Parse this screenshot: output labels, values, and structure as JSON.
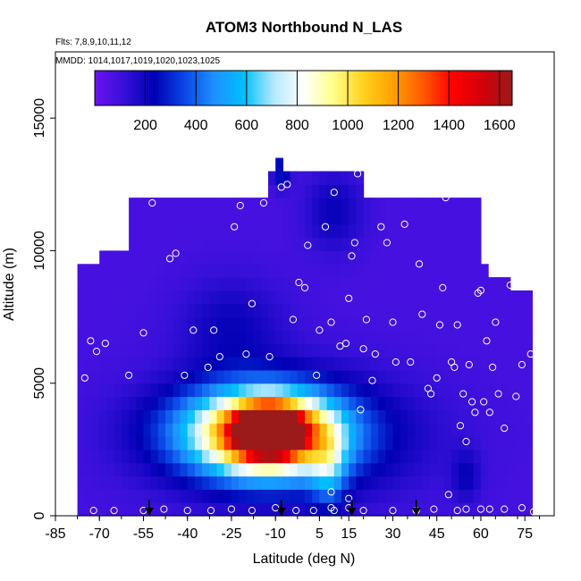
{
  "chart_data": {
    "type": "heatmap",
    "title": "ATOM3 Northbound N_LAS",
    "annotations": {
      "flights": "Flts: 7,8,9,10,11,12",
      "dates": "MMDD: 1014,1017,1019,1020,1023,1025"
    },
    "xlabel": "Latitude (deg N)",
    "ylabel": "Altitude (m)",
    "xlim": [
      -85,
      85
    ],
    "ylim": [
      0,
      17500
    ],
    "x_ticks": [
      -85,
      -70,
      -55,
      -40,
      -25,
      -10,
      5,
      15,
      30,
      45,
      60,
      75
    ],
    "x_tick_labels": [
      "-85",
      "-70",
      "-55",
      "-40",
      "-25",
      "-10",
      "5",
      "15",
      "30",
      "45",
      "60",
      "75"
    ],
    "y_ticks": [
      0,
      5000,
      10000,
      15000
    ],
    "y_tick_labels": [
      "0",
      "5000",
      "10000",
      "15000"
    ],
    "colorbar": {
      "range": [
        0,
        1650
      ],
      "ticks": [
        200,
        400,
        600,
        800,
        1000,
        1200,
        1400,
        1600
      ],
      "tick_labels": [
        "200",
        "400",
        "600",
        "800",
        "1000",
        "1200",
        "1400",
        "1600"
      ],
      "stops": [
        "#6a12f0",
        "#3510d8",
        "#0000b4",
        "#0a46e6",
        "#1e90ff",
        "#00bfff",
        "#b4e8ff",
        "#ffffff",
        "#ffff8c",
        "#ffd21e",
        "#ffa000",
        "#ff5a00",
        "#ff0000",
        "#d2000a",
        "#9b1a1a"
      ]
    },
    "grid": false,
    "background_value": 80,
    "fields": [
      {
        "lat": -12,
        "alt": 3200,
        "sx": 10,
        "sz": 800,
        "value": 1400
      },
      {
        "lat": -12,
        "alt": 3100,
        "sx": 20,
        "sz": 1400,
        "value": 900
      },
      {
        "lat": -18,
        "alt": 3200,
        "sx": 30,
        "sz": 1700,
        "value": 500
      },
      {
        "lat": -5,
        "alt": 3000,
        "sx": 42,
        "sz": 2300,
        "value": 250
      },
      {
        "lat": 8,
        "alt": 1800,
        "sx": 6,
        "sz": 1500,
        "value": 300
      },
      {
        "lat": -25,
        "alt": 7200,
        "sx": 18,
        "sz": 1800,
        "value": 130
      },
      {
        "lat": -8,
        "alt": 13000,
        "sx": 3,
        "sz": 600,
        "value": 220
      },
      {
        "lat": 10,
        "alt": 11500,
        "sx": 10,
        "sz": 1500,
        "value": 140
      },
      {
        "lat": 55,
        "alt": 1500,
        "sx": 5,
        "sz": 1000,
        "value": 130
      }
    ],
    "profiles": [
      {
        "lat": -75,
        "alt": 5200
      },
      {
        "lat": -73,
        "alt": 6600
      },
      {
        "lat": -71,
        "alt": 6200
      },
      {
        "lat": -68,
        "alt": 6500
      },
      {
        "lat": -60,
        "alt": 5300
      },
      {
        "lat": -55,
        "alt": 6900
      },
      {
        "lat": -52,
        "alt": 11800
      },
      {
        "lat": -46,
        "alt": 9700
      },
      {
        "lat": -44,
        "alt": 9900
      },
      {
        "lat": -41,
        "alt": 5300
      },
      {
        "lat": -38,
        "alt": 7000
      },
      {
        "lat": -33,
        "alt": 5600
      },
      {
        "lat": -31,
        "alt": 7000
      },
      {
        "lat": -29,
        "alt": 6000
      },
      {
        "lat": -24,
        "alt": 10900
      },
      {
        "lat": -22,
        "alt": 11700
      },
      {
        "lat": -20,
        "alt": 6100
      },
      {
        "lat": -18,
        "alt": 8000
      },
      {
        "lat": -14,
        "alt": 11800
      },
      {
        "lat": -12,
        "alt": 6000
      },
      {
        "lat": -8,
        "alt": 12400
      },
      {
        "lat": -6,
        "alt": 12500
      },
      {
        "lat": -4,
        "alt": 7400
      },
      {
        "lat": -2,
        "alt": 8800
      },
      {
        "lat": 0,
        "alt": 8600
      },
      {
        "lat": 1,
        "alt": 10200
      },
      {
        "lat": 4,
        "alt": 5300
      },
      {
        "lat": 5,
        "alt": 7000
      },
      {
        "lat": 7,
        "alt": 10900
      },
      {
        "lat": 9,
        "alt": 7300
      },
      {
        "lat": 10,
        "alt": 12200
      },
      {
        "lat": 12,
        "alt": 6400
      },
      {
        "lat": 14,
        "alt": 6500
      },
      {
        "lat": 15,
        "alt": 8200
      },
      {
        "lat": 16,
        "alt": 9800
      },
      {
        "lat": 17,
        "alt": 10300
      },
      {
        "lat": 18,
        "alt": 12900
      },
      {
        "lat": 19,
        "alt": 4000
      },
      {
        "lat": 20,
        "alt": 6300
      },
      {
        "lat": 21,
        "alt": 7400
      },
      {
        "lat": 23,
        "alt": 5100
      },
      {
        "lat": 24,
        "alt": 6100
      },
      {
        "lat": 26,
        "alt": 10900
      },
      {
        "lat": 28,
        "alt": 10300
      },
      {
        "lat": 30,
        "alt": 7300
      },
      {
        "lat": 31,
        "alt": 5800
      },
      {
        "lat": 34,
        "alt": 11000
      },
      {
        "lat": 36,
        "alt": 5800
      },
      {
        "lat": 38,
        "alt": 12200
      },
      {
        "lat": 39,
        "alt": 9500
      },
      {
        "lat": 40,
        "alt": 7600
      },
      {
        "lat": 42,
        "alt": 4800
      },
      {
        "lat": 43,
        "alt": 4600
      },
      {
        "lat": 45,
        "alt": 5200
      },
      {
        "lat": 46,
        "alt": 7200
      },
      {
        "lat": 47,
        "alt": 8600
      },
      {
        "lat": 48,
        "alt": 12000
      },
      {
        "lat": 50,
        "alt": 5800
      },
      {
        "lat": 51,
        "alt": 5600
      },
      {
        "lat": 52,
        "alt": 7200
      },
      {
        "lat": 53,
        "alt": 3400
      },
      {
        "lat": 54,
        "alt": 4600
      },
      {
        "lat": 55,
        "alt": 2800
      },
      {
        "lat": 56,
        "alt": 5700
      },
      {
        "lat": 57,
        "alt": 4300
      },
      {
        "lat": 58,
        "alt": 3900
      },
      {
        "lat": 59,
        "alt": 8400
      },
      {
        "lat": 60,
        "alt": 8500
      },
      {
        "lat": 61,
        "alt": 4300
      },
      {
        "lat": 62,
        "alt": 6600
      },
      {
        "lat": 63,
        "alt": 3900
      },
      {
        "lat": 64,
        "alt": 5600
      },
      {
        "lat": 65,
        "alt": 7300
      },
      {
        "lat": 66,
        "alt": 4600
      },
      {
        "lat": 68,
        "alt": 3300
      },
      {
        "lat": 70,
        "alt": 8700
      },
      {
        "lat": 72,
        "alt": 4500
      },
      {
        "lat": 74,
        "alt": 5700
      },
      {
        "lat": 76,
        "alt": 8900
      },
      {
        "lat": 77,
        "alt": 6100
      }
    ],
    "surface_points": [
      {
        "lat": -72,
        "alt": 200
      },
      {
        "lat": -65,
        "alt": 200
      },
      {
        "lat": -55,
        "alt": 200
      },
      {
        "lat": -48,
        "alt": 250
      },
      {
        "lat": -40,
        "alt": 200
      },
      {
        "lat": -32,
        "alt": 200
      },
      {
        "lat": -25,
        "alt": 250
      },
      {
        "lat": -18,
        "alt": 200
      },
      {
        "lat": -10,
        "alt": 300
      },
      {
        "lat": -3,
        "alt": 200
      },
      {
        "lat": 3,
        "alt": 200
      },
      {
        "lat": 9,
        "alt": 300
      },
      {
        "lat": 9,
        "alt": 900
      },
      {
        "lat": 10,
        "alt": 200
      },
      {
        "lat": 15,
        "alt": 650
      },
      {
        "lat": 15,
        "alt": 300
      },
      {
        "lat": 20,
        "alt": 200
      },
      {
        "lat": 30,
        "alt": 200
      },
      {
        "lat": 38,
        "alt": 200
      },
      {
        "lat": 44,
        "alt": 250
      },
      {
        "lat": 49,
        "alt": 800
      },
      {
        "lat": 52,
        "alt": 200
      },
      {
        "lat": 55,
        "alt": 250
      },
      {
        "lat": 60,
        "alt": 250
      },
      {
        "lat": 63,
        "alt": 250
      },
      {
        "lat": 68,
        "alt": 250
      },
      {
        "lat": 74,
        "alt": 300
      },
      {
        "lat": 78,
        "alt": 150
      }
    ],
    "arrows": [
      {
        "lat": -53,
        "alt_top": 600,
        "alt_bottom": 0
      },
      {
        "lat": -8,
        "alt_top": 600,
        "alt_bottom": 0
      },
      {
        "lat": 16,
        "alt_top": 600,
        "alt_bottom": 0
      },
      {
        "lat": 38,
        "alt_top": 600,
        "alt_bottom": 0
      }
    ]
  }
}
